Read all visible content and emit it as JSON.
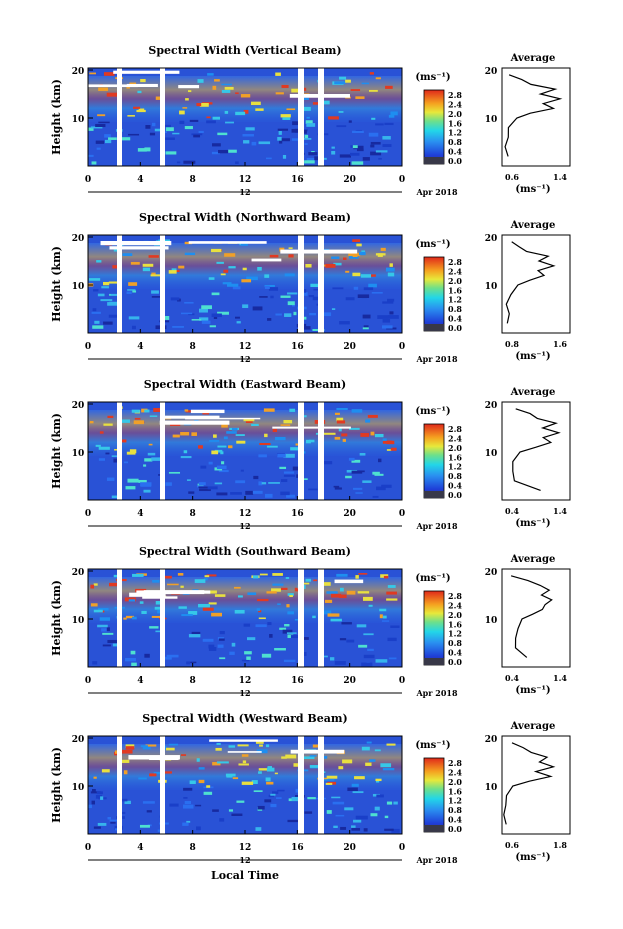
{
  "figure": {
    "colorbar_unit": "(ms⁻¹)",
    "colorbar_ticks": [
      "0.0",
      "0.4",
      "0.8",
      "1.2",
      "1.6",
      "2.0",
      "2.4",
      "2.8"
    ],
    "ylabel": "Height (km)",
    "yticks": [
      "20",
      "10"
    ],
    "xticks": [
      "0",
      "4",
      "8",
      "12",
      "16",
      "20",
      "0"
    ],
    "date_day": "12",
    "date_label": "Apr 2018",
    "xlabel": "Local Time",
    "avg_title": "Average",
    "avg_unit": "(ms⁻¹)"
  },
  "chart_data": [
    {
      "type": "heatmap",
      "title": "Spectral Width (Vertical Beam)",
      "x_range": [
        0,
        24
      ],
      "y_range": [
        0,
        20
      ],
      "color_range": [
        0.0,
        2.8
      ],
      "average_profile": {
        "title": "Average",
        "xticks": [
          "0.6",
          "1.4"
        ],
        "xlim": [
          0.6,
          1.4
        ],
        "heights": [
          2,
          4,
          6,
          8,
          10,
          11,
          12,
          13,
          14,
          15,
          16,
          17,
          18,
          19
        ],
        "values": [
          0.66,
          0.64,
          0.66,
          0.68,
          0.78,
          0.95,
          1.22,
          1.1,
          1.3,
          1.05,
          1.22,
          0.95,
          0.85,
          0.7
        ]
      }
    },
    {
      "type": "heatmap",
      "title": "Spectral Width (Northward Beam)",
      "x_range": [
        0,
        24
      ],
      "y_range": [
        0,
        20
      ],
      "color_range": [
        0.0,
        2.8
      ],
      "average_profile": {
        "title": "Average",
        "xticks": [
          "0.8",
          "1.6"
        ],
        "xlim": [
          0.8,
          1.6
        ],
        "heights": [
          2,
          4,
          6,
          8,
          10,
          11,
          12,
          13,
          14,
          15,
          16,
          17,
          18,
          19
        ],
        "values": [
          0.86,
          0.9,
          0.85,
          0.9,
          1.0,
          1.12,
          1.3,
          1.22,
          1.4,
          1.25,
          1.35,
          1.1,
          1.0,
          0.9
        ]
      }
    },
    {
      "type": "heatmap",
      "title": "Spectral Width (Eastward Beam)",
      "x_range": [
        0,
        24
      ],
      "y_range": [
        0,
        20
      ],
      "color_range": [
        0.0,
        2.8
      ],
      "average_profile": {
        "title": "Average",
        "xticks": [
          "0.4",
          "1.4"
        ],
        "xlim": [
          0.4,
          1.4
        ],
        "heights": [
          2,
          4,
          6,
          8,
          10,
          11,
          12,
          13,
          14,
          15,
          16,
          17,
          18,
          19
        ],
        "values": [
          0.95,
          0.6,
          0.55,
          0.58,
          0.65,
          0.9,
          1.1,
          1.0,
          1.25,
          1.0,
          1.2,
          0.9,
          0.8,
          0.6
        ]
      }
    },
    {
      "type": "heatmap",
      "title": "Spectral Width (Southward Beam)",
      "x_range": [
        0,
        24
      ],
      "y_range": [
        0,
        20
      ],
      "color_range": [
        0.0,
        2.8
      ],
      "average_profile": {
        "title": "Average",
        "xticks": [
          "0.4",
          "1.4"
        ],
        "xlim": [
          0.4,
          1.4
        ],
        "heights": [
          2,
          4,
          6,
          8,
          10,
          11,
          12,
          13,
          14,
          15,
          16,
          17,
          18,
          19
        ],
        "values": [
          0.75,
          0.62,
          0.6,
          0.65,
          0.7,
          0.85,
          1.0,
          1.05,
          1.15,
          1.0,
          1.1,
          0.95,
          0.8,
          0.55
        ]
      }
    },
    {
      "type": "heatmap",
      "title": "Spectral Width (Westward Beam)",
      "x_range": [
        0,
        24
      ],
      "y_range": [
        0,
        20
      ],
      "color_range": [
        0.0,
        2.8
      ],
      "average_profile": {
        "title": "Average",
        "xticks": [
          "0.6",
          "1.8"
        ],
        "xlim": [
          0.6,
          1.8
        ],
        "heights": [
          2,
          4,
          6,
          8,
          10,
          11,
          12,
          13,
          14,
          15,
          16,
          17,
          18,
          19
        ],
        "values": [
          0.68,
          0.65,
          0.66,
          0.7,
          0.8,
          1.1,
          1.45,
          1.2,
          1.5,
          1.25,
          1.4,
          1.1,
          0.95,
          0.75
        ]
      }
    }
  ]
}
